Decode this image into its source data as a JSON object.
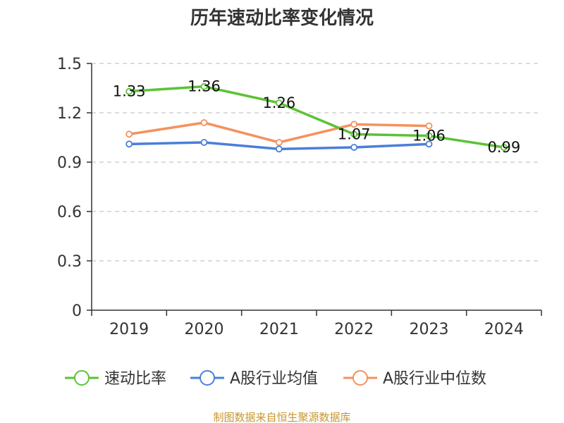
{
  "chart_data": {
    "type": "line",
    "title": "历年速动比率变化情况",
    "categories": [
      "2019",
      "2020",
      "2021",
      "2022",
      "2023",
      "2024"
    ],
    "ylim": [
      0,
      1.5
    ],
    "yticks": [
      "0",
      "0.3",
      "0.6",
      "0.9",
      "1.2",
      "1.5"
    ],
    "grid": true,
    "legend_position": "bottom",
    "series": [
      {
        "name": "速动比率",
        "color": "#5bc236",
        "values": [
          1.33,
          1.36,
          1.26,
          1.07,
          1.06,
          0.99
        ],
        "labels": [
          "1.33",
          "1.36",
          "1.26",
          "1.07",
          "1.06",
          "0.99"
        ]
      },
      {
        "name": "A股行业均值",
        "color": "#4a7fd9",
        "values": [
          1.01,
          1.02,
          0.98,
          0.99,
          1.01,
          null
        ]
      },
      {
        "name": "A股行业中位数",
        "color": "#f4925e",
        "values": [
          1.07,
          1.14,
          1.02,
          1.13,
          1.12,
          null
        ]
      }
    ]
  },
  "source": "制图数据来自恒生聚源数据库"
}
